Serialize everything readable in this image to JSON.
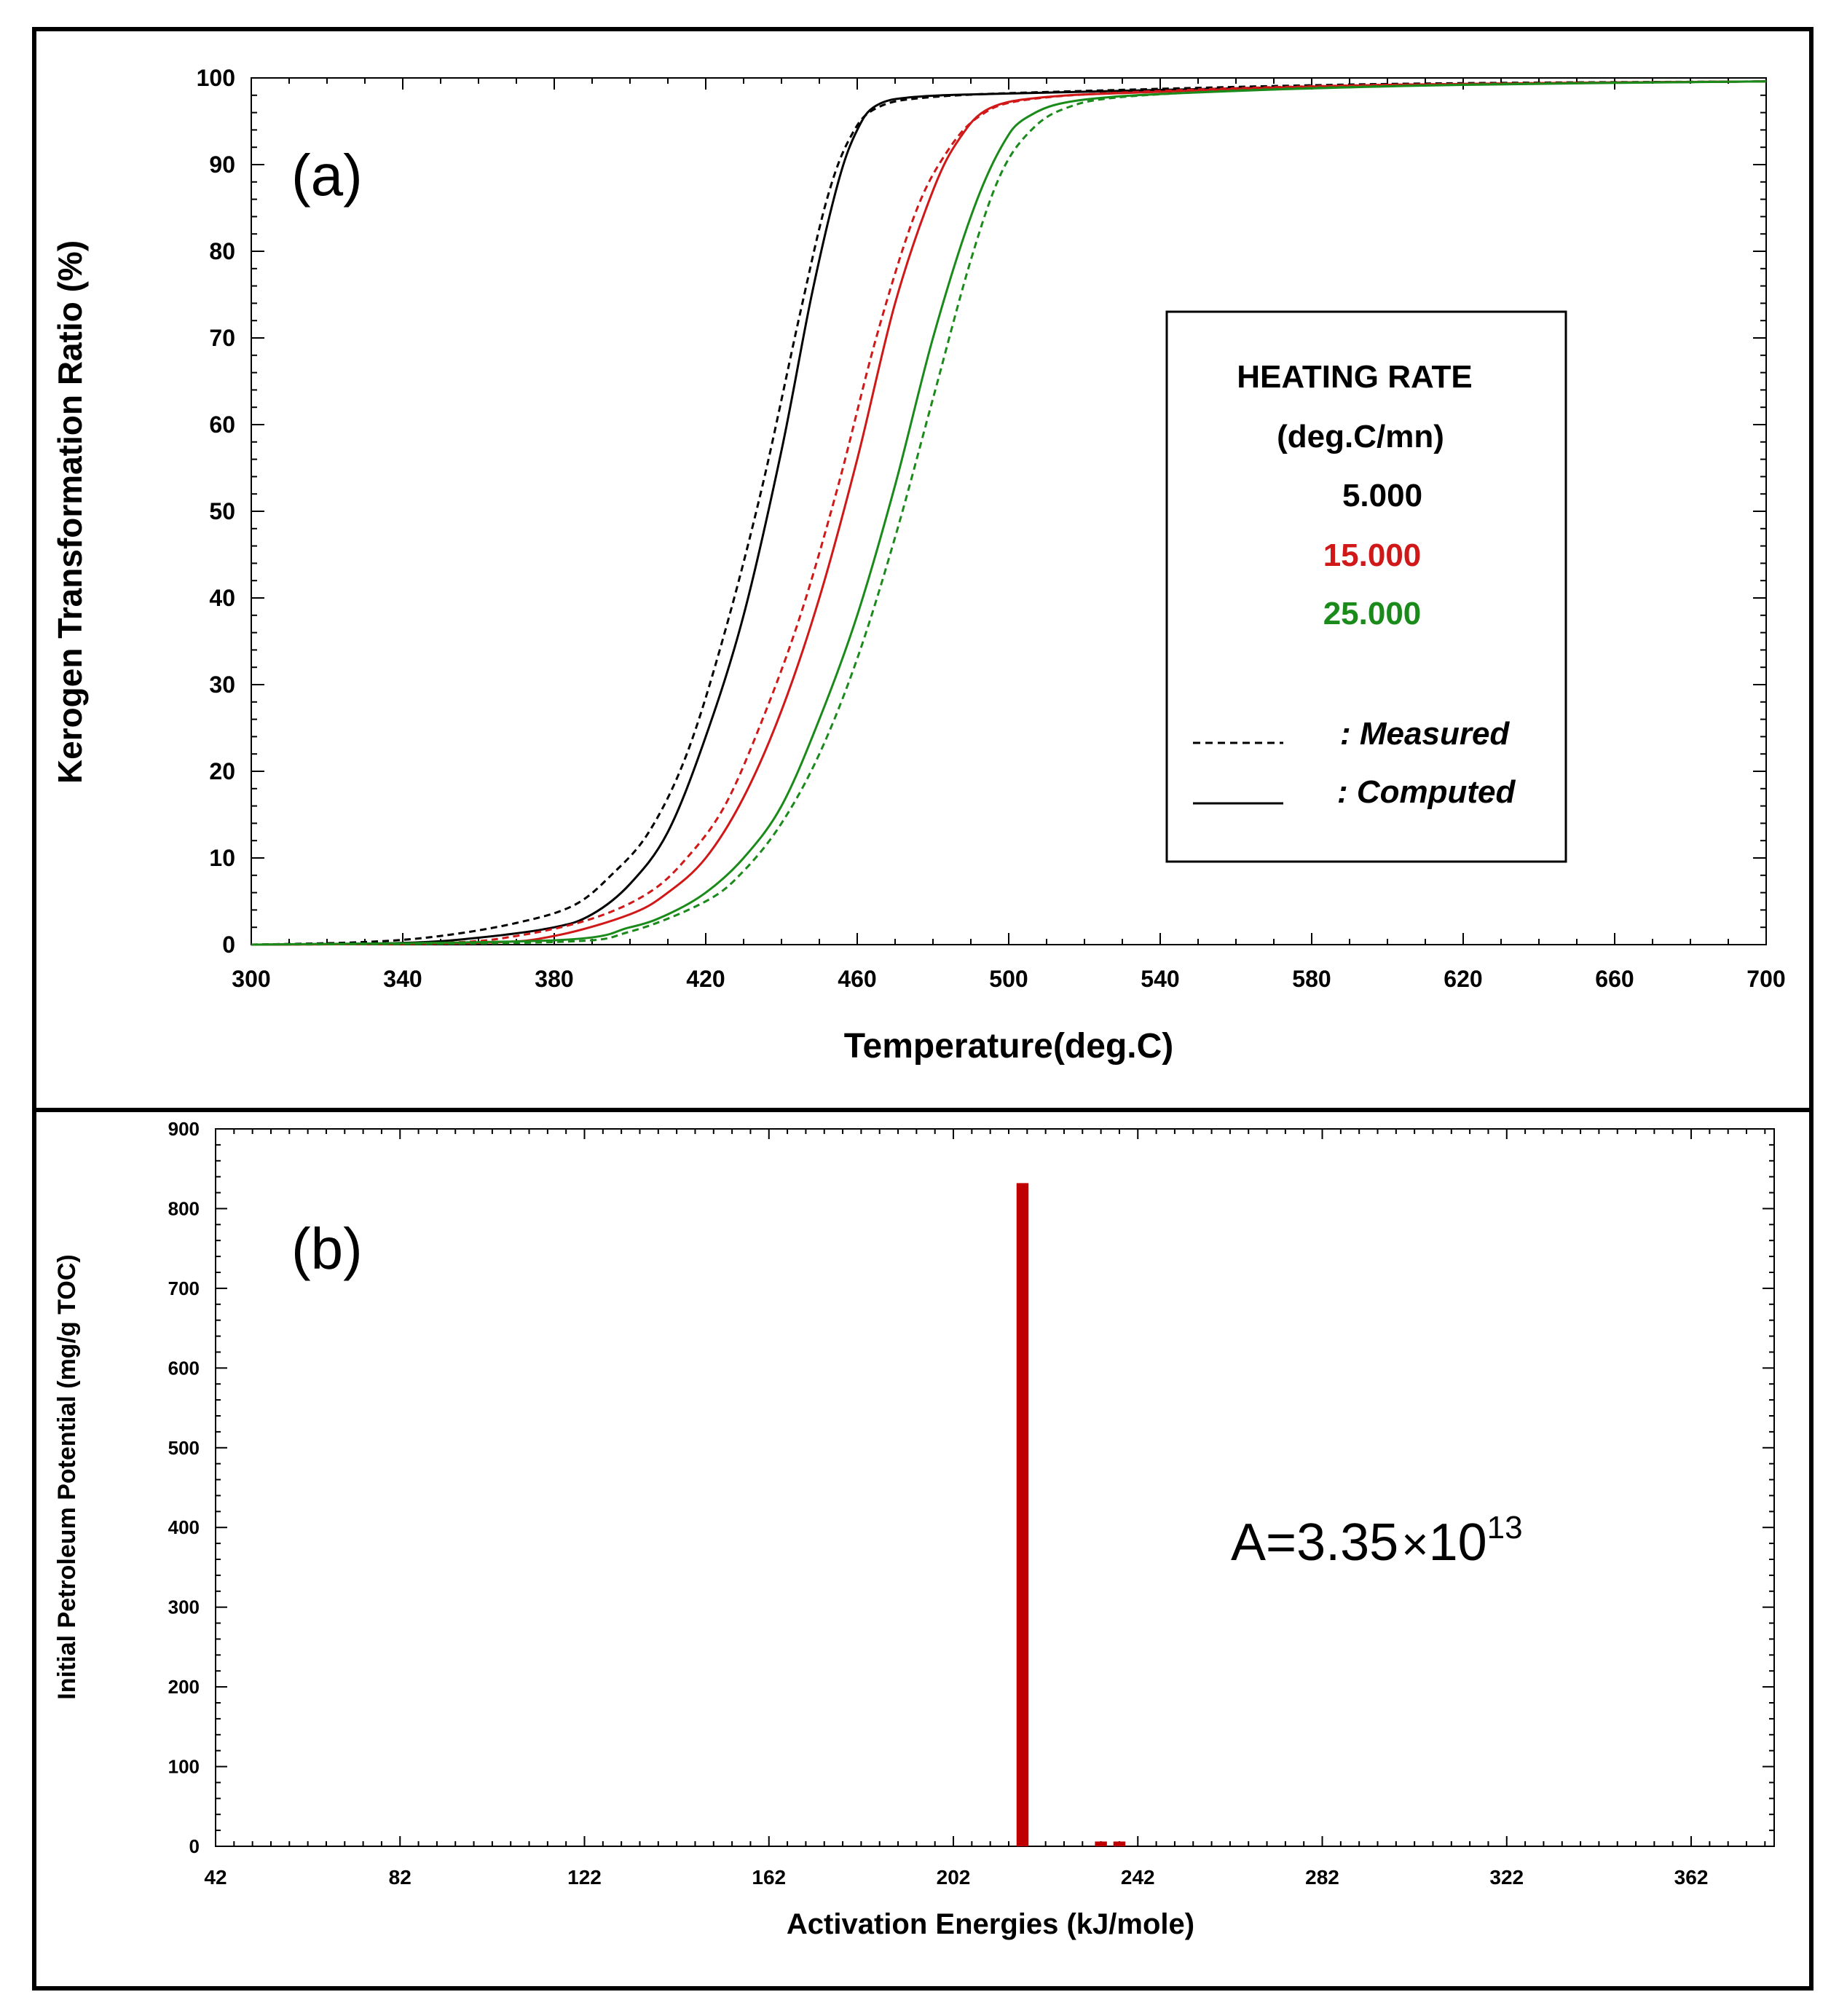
{
  "colors": {
    "rate_5": "#000000",
    "rate_15": "#d01818",
    "rate_25": "#1a8a1a",
    "bar": "#c00000"
  },
  "chart_data": [
    {
      "type": "line",
      "panel_label": "(a)",
      "xlabel": "Temperature(deg.C)",
      "ylabel": "Kerogen Transformation Ratio (%)",
      "xlim": [
        300,
        700
      ],
      "ylim": [
        0,
        100
      ],
      "x_ticks": [
        "300",
        "340",
        "380",
        "420",
        "460",
        "500",
        "540",
        "580",
        "620",
        "660",
        "700"
      ],
      "y_ticks": [
        "0",
        "10",
        "20",
        "30",
        "40",
        "50",
        "60",
        "70",
        "80",
        "90",
        "100"
      ],
      "legend": {
        "title": "HEATING RATE",
        "units": "(deg.C/mn)",
        "rates": [
          "5.000",
          "15.000",
          "25.000"
        ],
        "measured_label": ": Measured",
        "computed_label": ": Computed"
      },
      "series": [
        {
          "name": "5.000 Computed",
          "style": "solid",
          "color_key": "rate_5",
          "points": [
            [
              300,
              0
            ],
            [
              340,
              0.2
            ],
            [
              360,
              0.8
            ],
            [
              380,
              2
            ],
            [
              390,
              3.5
            ],
            [
              400,
              7
            ],
            [
              410,
              13
            ],
            [
              420,
              24
            ],
            [
              430,
              38
            ],
            [
              440,
              57
            ],
            [
              448,
              75
            ],
            [
              455,
              88
            ],
            [
              460,
              94
            ],
            [
              465,
              96.8
            ],
            [
              475,
              97.8
            ],
            [
              500,
              98.2
            ],
            [
              560,
              98.8
            ],
            [
              620,
              99.3
            ],
            [
              700,
              99.6
            ]
          ]
        },
        {
          "name": "5.000 Measured",
          "style": "dashed",
          "color_key": "rate_5",
          "points": [
            [
              300,
              0
            ],
            [
              330,
              0.3
            ],
            [
              350,
              1
            ],
            [
              370,
              2.5
            ],
            [
              385,
              4.5
            ],
            [
              395,
              8
            ],
            [
              405,
              13
            ],
            [
              415,
              22
            ],
            [
              425,
              36
            ],
            [
              435,
              53
            ],
            [
              445,
              73
            ],
            [
              452,
              86
            ],
            [
              458,
              93
            ],
            [
              465,
              96.5
            ],
            [
              480,
              97.8
            ],
            [
              520,
              98.5
            ],
            [
              600,
              99.3
            ],
            [
              700,
              99.6
            ]
          ]
        },
        {
          "name": "15.000 Computed",
          "style": "solid",
          "color_key": "rate_15",
          "points": [
            [
              300,
              0
            ],
            [
              360,
              0.2
            ],
            [
              380,
              1
            ],
            [
              400,
              3.5
            ],
            [
              410,
              6
            ],
            [
              420,
              10
            ],
            [
              430,
              17
            ],
            [
              440,
              27
            ],
            [
              450,
              40
            ],
            [
              460,
              56
            ],
            [
              470,
              74
            ],
            [
              480,
              87
            ],
            [
              487,
              93
            ],
            [
              495,
              96.5
            ],
            [
              510,
              97.8
            ],
            [
              540,
              98.4
            ],
            [
              600,
              99.2
            ],
            [
              700,
              99.6
            ]
          ]
        },
        {
          "name": "15.000 Measured",
          "style": "dashed",
          "color_key": "rate_15",
          "points": [
            [
              300,
              0
            ],
            [
              350,
              0.2
            ],
            [
              370,
              1
            ],
            [
              390,
              3
            ],
            [
              405,
              6
            ],
            [
              415,
              10
            ],
            [
              425,
              16
            ],
            [
              435,
              26
            ],
            [
              445,
              38
            ],
            [
              455,
              53
            ],
            [
              465,
              70
            ],
            [
              475,
              84
            ],
            [
              483,
              91
            ],
            [
              492,
              95.5
            ],
            [
              505,
              97.5
            ],
            [
              540,
              98.5
            ],
            [
              600,
              99.2
            ],
            [
              700,
              99.6
            ]
          ]
        },
        {
          "name": "25.000 Computed",
          "style": "solid",
          "color_key": "rate_25",
          "points": [
            [
              300,
              0
            ],
            [
              380,
              0.5
            ],
            [
              400,
              2
            ],
            [
              410,
              3.5
            ],
            [
              420,
              6
            ],
            [
              430,
              10
            ],
            [
              440,
              16
            ],
            [
              450,
              26
            ],
            [
              460,
              38
            ],
            [
              470,
              53
            ],
            [
              480,
              70
            ],
            [
              490,
              84
            ],
            [
              498,
              92
            ],
            [
              505,
              95.5
            ],
            [
              520,
              97.5
            ],
            [
              560,
              98.5
            ],
            [
              620,
              99.2
            ],
            [
              700,
              99.6
            ]
          ]
        },
        {
          "name": "25.000 Measured",
          "style": "dashed",
          "color_key": "rate_25",
          "points": [
            [
              300,
              0
            ],
            [
              380,
              0.3
            ],
            [
              400,
              1.5
            ],
            [
              420,
              5
            ],
            [
              430,
              8.5
            ],
            [
              440,
              14
            ],
            [
              450,
              22
            ],
            [
              460,
              33
            ],
            [
              470,
              47
            ],
            [
              480,
              63
            ],
            [
              490,
              79
            ],
            [
              498,
              89
            ],
            [
              506,
              94
            ],
            [
              515,
              96.5
            ],
            [
              530,
              97.8
            ],
            [
              570,
              98.7
            ],
            [
              630,
              99.3
            ],
            [
              700,
              99.6
            ]
          ]
        }
      ]
    },
    {
      "type": "bar",
      "panel_label": "(b)",
      "xlabel": "Activation Energies (kJ/mole)",
      "ylabel": "Initial Petroleum Potential (mg/g TOC)",
      "xlim": [
        42,
        380
      ],
      "ylim": [
        0,
        900
      ],
      "x_ticks": [
        "42",
        "82",
        "122",
        "162",
        "202",
        "242",
        "282",
        "322",
        "362"
      ],
      "y_ticks": [
        "0",
        "100",
        "200",
        "300",
        "400",
        "500",
        "600",
        "700",
        "800",
        "900"
      ],
      "bars": [
        {
          "x": 217,
          "value": 832
        },
        {
          "x": 234,
          "value": 6
        },
        {
          "x": 238,
          "value": 6
        }
      ],
      "annotation": {
        "prefix": "A=3.35",
        "times": "×",
        "base": "10",
        "exponent": "13"
      }
    }
  ]
}
